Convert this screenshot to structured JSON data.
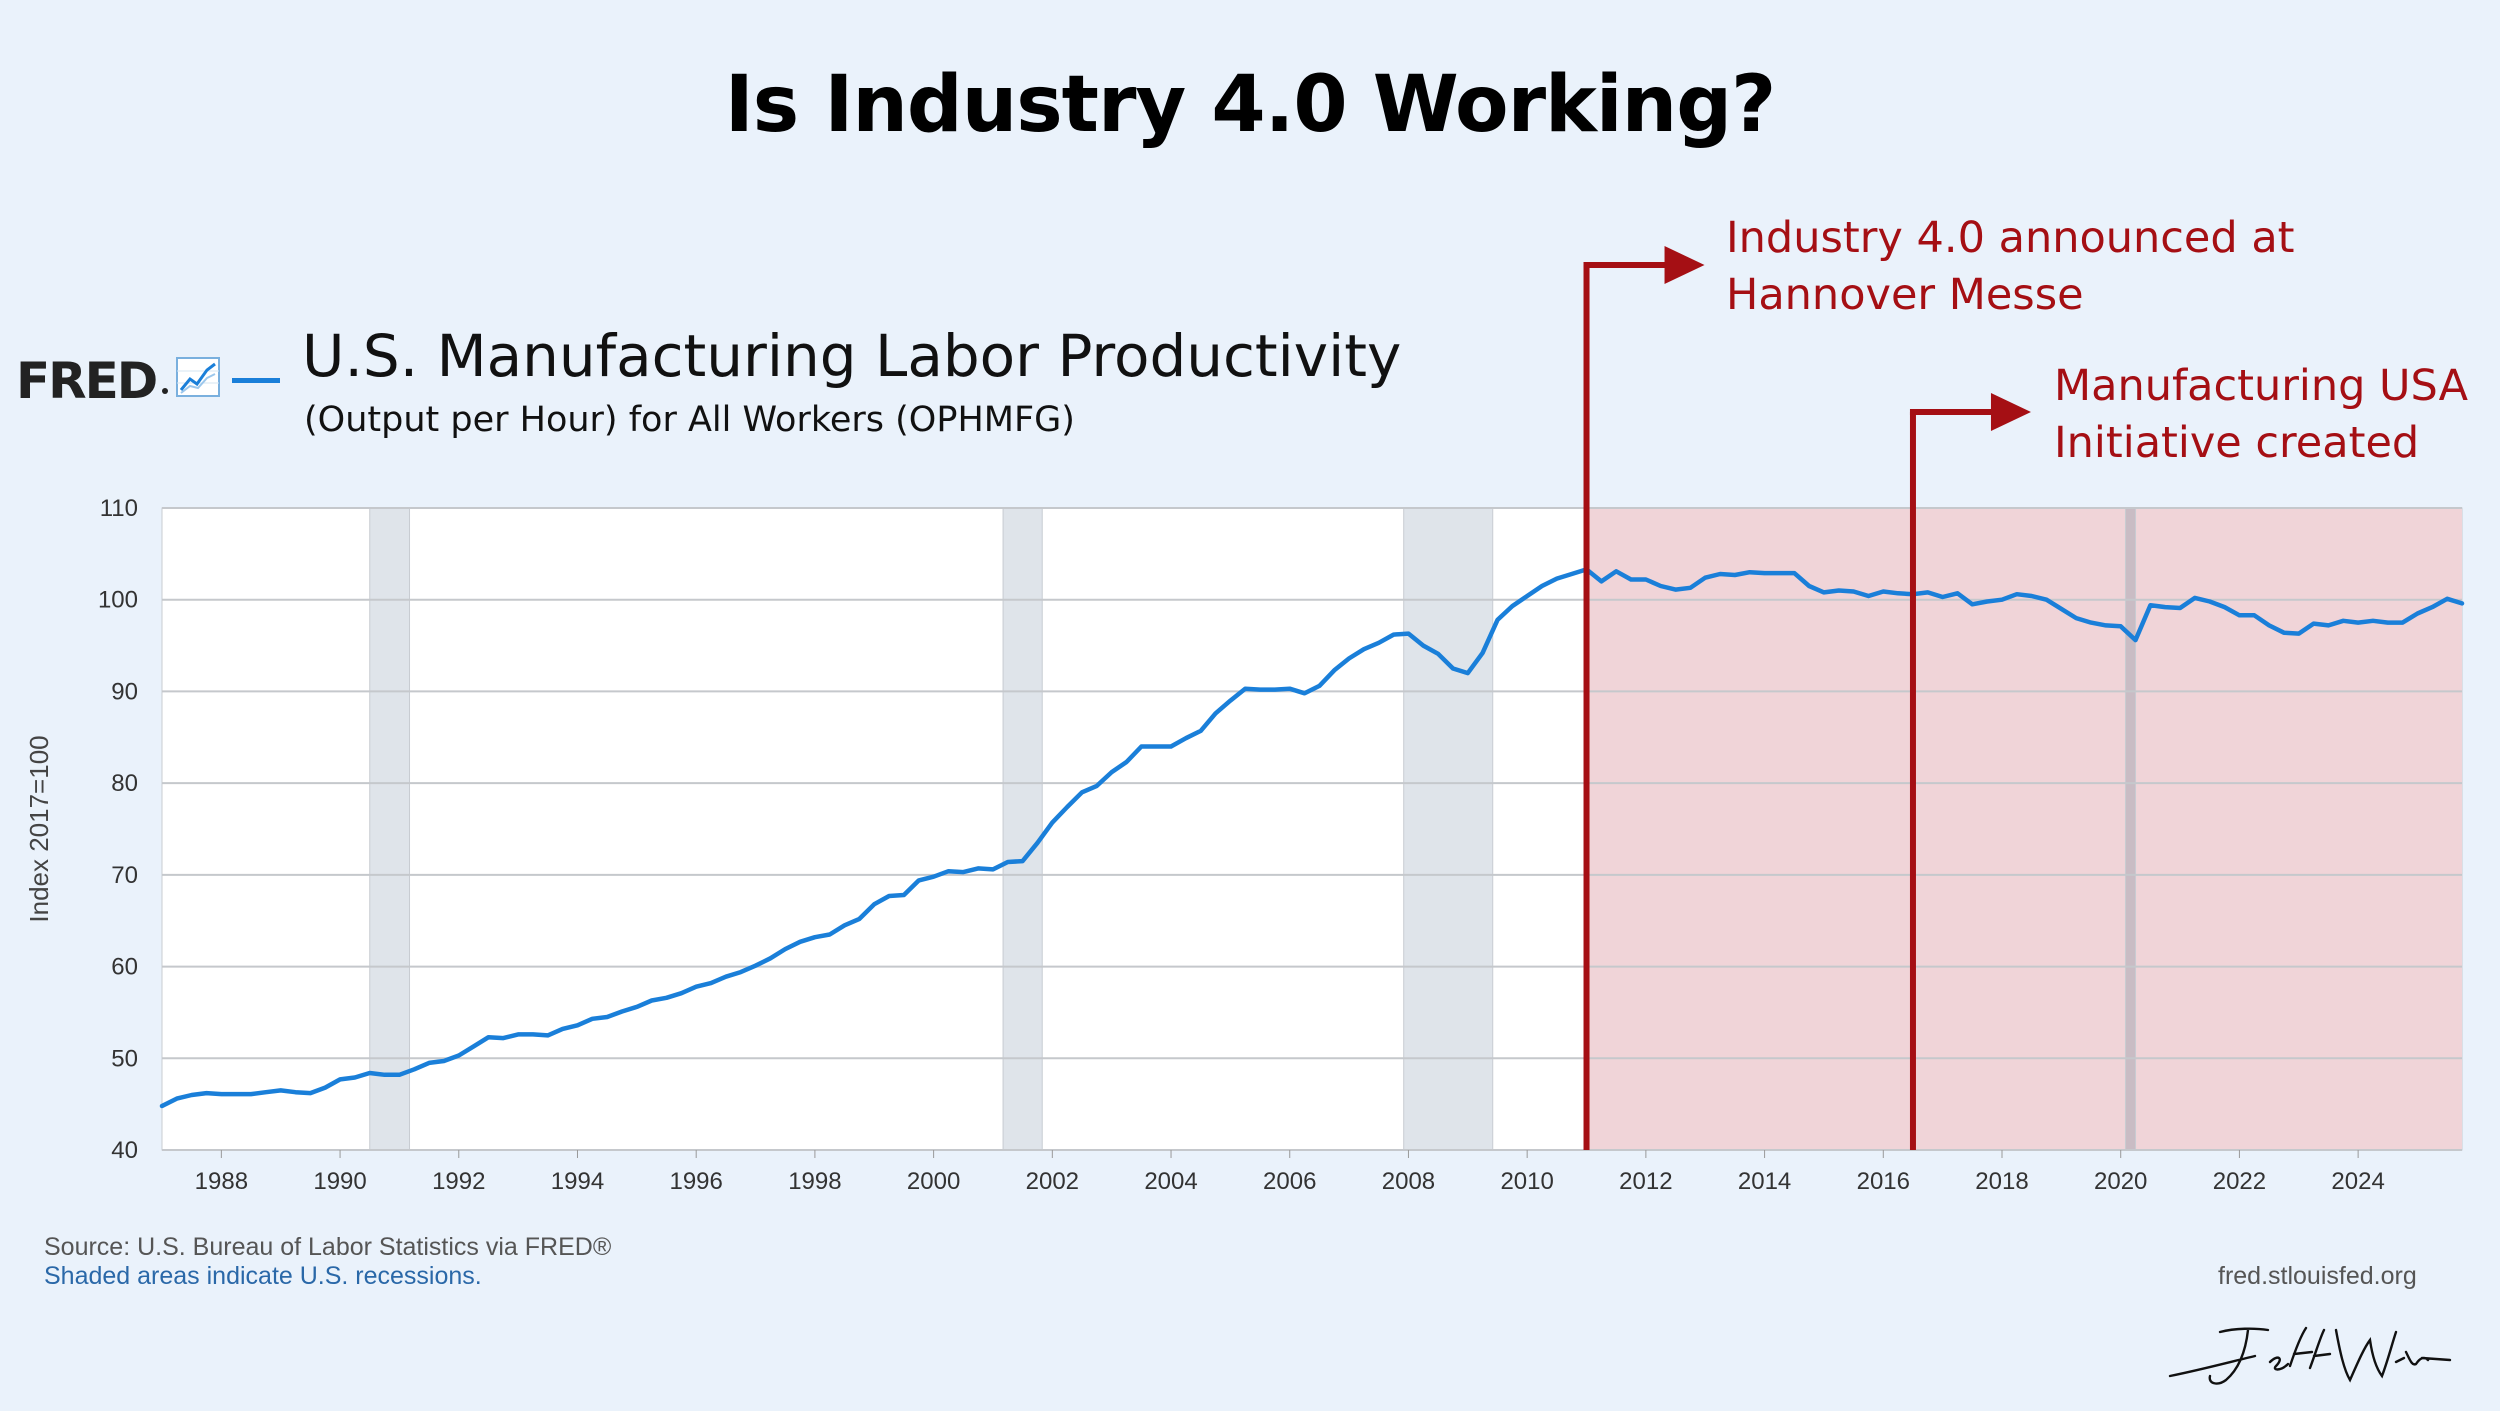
{
  "title": "Is Industry 4.0 Working?",
  "logo": {
    "text": "FRED",
    "icon": "chart-trend-icon"
  },
  "footer": {
    "source": "Source: U.S. Bureau of Labor Statistics via FRED®",
    "shaded_note": "Shaded areas indicate U.S. recessions.",
    "url": "fred.stlouisfed.org"
  },
  "signature": "Jeff Winter",
  "colors": {
    "background": "#eaf2fb",
    "line": "#1a7fd9",
    "recession": "#dfe4ea",
    "highlight": "#f0d4d8",
    "annotation": "#a50f14"
  },
  "chart_data": {
    "type": "line",
    "title": "U.S. Manufacturing Labor Productivity",
    "subtitle": "(Output per Hour) for All Workers (OPHMFG)",
    "ylabel": "Index 2017=100",
    "xlabel": "",
    "ylim": [
      40,
      110
    ],
    "xlim": [
      1987.0,
      2025.75
    ],
    "yticks": [
      40,
      50,
      60,
      70,
      80,
      90,
      100,
      110
    ],
    "xticks": [
      1988,
      1990,
      1992,
      1994,
      1996,
      1998,
      2000,
      2002,
      2004,
      2006,
      2008,
      2010,
      2012,
      2014,
      2016,
      2018,
      2020,
      2022,
      2024
    ],
    "grid": true,
    "recessions": [
      [
        1990.5,
        1991.17
      ],
      [
        2001.17,
        2001.83
      ],
      [
        2007.92,
        2009.42
      ],
      [
        2020.08,
        2020.25
      ]
    ],
    "highlight_range": [
      2011.0,
      2025.75
    ],
    "annotations": [
      {
        "x": 2011.0,
        "lines": [
          "Industry 4.0 announced at",
          "Hannover Messe"
        ]
      },
      {
        "x": 2016.5,
        "lines": [
          "Manufacturing USA",
          "Initiative created"
        ]
      }
    ],
    "series": [
      {
        "name": "",
        "x": [
          1987.0,
          1987.25,
          1987.5,
          1987.75,
          1988.0,
          1988.25,
          1988.5,
          1988.75,
          1989.0,
          1989.25,
          1989.5,
          1989.75,
          1990.0,
          1990.25,
          1990.5,
          1990.75,
          1991.0,
          1991.25,
          1991.5,
          1991.75,
          1992.0,
          1992.25,
          1992.5,
          1992.75,
          1993.0,
          1993.25,
          1993.5,
          1993.75,
          1994.0,
          1994.25,
          1994.5,
          1994.75,
          1995.0,
          1995.25,
          1995.5,
          1995.75,
          1996.0,
          1996.25,
          1996.5,
          1996.75,
          1997.0,
          1997.25,
          1997.5,
          1997.75,
          1998.0,
          1998.25,
          1998.5,
          1998.75,
          1999.0,
          1999.25,
          1999.5,
          1999.75,
          2000.0,
          2000.25,
          2000.5,
          2000.75,
          2001.0,
          2001.25,
          2001.5,
          2001.75,
          2002.0,
          2002.25,
          2002.5,
          2002.75,
          2003.0,
          2003.25,
          2003.5,
          2003.75,
          2004.0,
          2004.25,
          2004.5,
          2004.75,
          2005.0,
          2005.25,
          2005.5,
          2005.75,
          2006.0,
          2006.25,
          2006.5,
          2006.75,
          2007.0,
          2007.25,
          2007.5,
          2007.75,
          2008.0,
          2008.25,
          2008.5,
          2008.75,
          2009.0,
          2009.25,
          2009.5,
          2009.75,
          2010.0,
          2010.25,
          2010.5,
          2010.75,
          2011.0,
          2011.25,
          2011.5,
          2011.75,
          2012.0,
          2012.25,
          2012.5,
          2012.75,
          2013.0,
          2013.25,
          2013.5,
          2013.75,
          2014.0,
          2014.25,
          2014.5,
          2014.75,
          2015.0,
          2015.25,
          2015.5,
          2015.75,
          2016.0,
          2016.25,
          2016.5,
          2016.75,
          2017.0,
          2017.25,
          2017.5,
          2017.75,
          2018.0,
          2018.25,
          2018.5,
          2018.75,
          2019.0,
          2019.25,
          2019.5,
          2019.75,
          2020.0,
          2020.25,
          2020.5,
          2020.75,
          2021.0,
          2021.25,
          2021.5,
          2021.75,
          2022.0,
          2022.25,
          2022.5,
          2022.75,
          2023.0,
          2023.25,
          2023.5,
          2023.75,
          2024.0,
          2024.25,
          2024.5,
          2024.75,
          2025.0,
          2025.25,
          2025.5,
          2025.75
        ],
        "values": [
          44.8,
          45.6,
          46.0,
          46.2,
          46.1,
          46.1,
          46.1,
          46.3,
          46.5,
          46.3,
          46.2,
          46.8,
          47.7,
          47.9,
          48.4,
          48.2,
          48.2,
          48.8,
          49.5,
          49.7,
          50.3,
          51.3,
          52.3,
          52.2,
          52.6,
          52.6,
          52.5,
          53.2,
          53.6,
          54.3,
          54.5,
          55.1,
          55.6,
          56.3,
          56.6,
          57.1,
          57.8,
          58.2,
          58.9,
          59.4,
          60.1,
          60.9,
          61.9,
          62.7,
          63.2,
          63.5,
          64.5,
          65.2,
          66.8,
          67.7,
          67.8,
          69.4,
          69.8,
          70.4,
          70.3,
          70.7,
          70.6,
          71.4,
          71.5,
          73.5,
          75.7,
          77.4,
          79.0,
          79.7,
          81.2,
          82.3,
          84.0,
          84.0,
          84.0,
          84.9,
          85.7,
          87.6,
          89.0,
          90.3,
          90.2,
          90.2,
          90.3,
          89.8,
          90.6,
          92.3,
          93.6,
          94.6,
          95.3,
          96.2,
          96.3,
          95.0,
          94.1,
          92.5,
          92.0,
          94.2,
          97.8,
          99.3,
          100.4,
          101.5,
          102.3,
          102.8,
          103.3,
          102.0,
          103.1,
          102.2,
          102.2,
          101.5,
          101.1,
          101.3,
          102.4,
          102.8,
          102.7,
          103.0,
          102.9,
          102.9,
          102.9,
          101.5,
          100.8,
          101.0,
          100.9,
          100.4,
          100.9,
          100.7,
          100.6,
          100.8,
          100.3,
          100.7,
          99.5,
          99.8,
          100.0,
          100.6,
          100.4,
          100.0,
          99.0,
          98.0,
          97.5,
          97.2,
          97.1,
          95.6,
          99.4,
          99.2,
          99.1,
          100.2,
          99.8,
          99.2,
          98.3,
          98.3,
          97.2,
          96.4,
          96.3,
          97.4,
          97.2,
          97.7,
          97.5,
          97.7,
          97.5,
          97.5,
          98.5,
          99.2,
          100.1,
          99.6
        ]
      }
    ]
  }
}
